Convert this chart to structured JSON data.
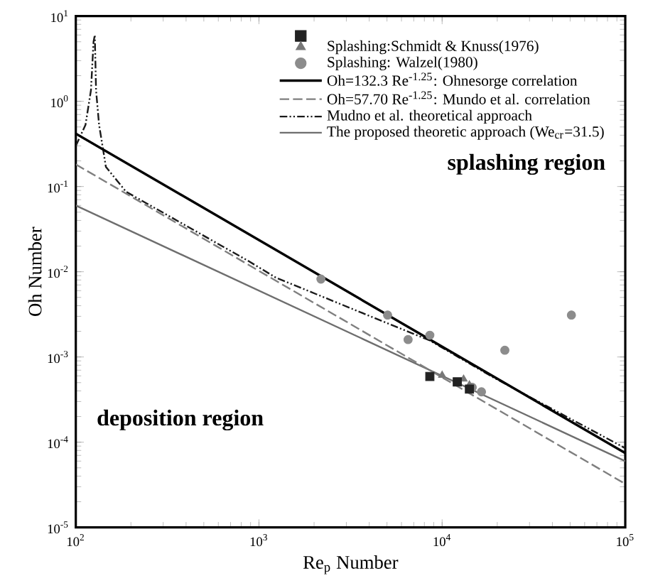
{
  "chart_data": {
    "type": "scatter",
    "xlabel": "Re$_{p}$ Number",
    "ylabel": "Oh Number",
    "log": "xy",
    "legend": "top right",
    "grid": false,
    "xlim": [
      100,
      100000
    ],
    "ylim": [
      1e-05,
      10
    ],
    "xticks": [
      {
        "value": 100,
        "label": "10$^{2}$"
      },
      {
        "value": 1000,
        "label": "10$^{3}$"
      },
      {
        "value": 10000,
        "label": "10$^{4}$"
      },
      {
        "value": 100000,
        "label": "10$^{5}$"
      }
    ],
    "yticks": [
      {
        "value": 1e-05,
        "label": "10$^{-5}$"
      },
      {
        "value": 0.0001,
        "label": "10$^{-4}$"
      },
      {
        "value": 0.001,
        "label": "10$^{-3}$"
      },
      {
        "value": 0.01,
        "label": "10$^{-2}$"
      },
      {
        "value": 0.1,
        "label": "10$^{-1}$"
      },
      {
        "value": 1,
        "label": "10$^{0}$"
      },
      {
        "value": 10,
        "label": "10$^{1}$"
      }
    ],
    "annotations": [
      "splashing region",
      "deposition region"
    ],
    "series": [
      {
        "marker": "square",
        "color": "#222222",
        "x": [
          8570,
          12100,
          14100
        ],
        "values": [
          0.00059,
          0.00051,
          0.00042
        ]
      },
      {
        "marker": "triangle",
        "name": "Splashing:Schmidt & Knuss(1976)",
        "color": "#777777",
        "x": [
          10000,
          13100,
          14100
        ],
        "values": [
          0.00061,
          0.00055,
          0.00047
        ]
      },
      {
        "marker": "circle",
        "name": "Splashing: Walzel(1980)",
        "color": "#8c8c8c",
        "x": [
          2180,
          5040,
          6520,
          8570,
          22000,
          50800,
          14600,
          16400
        ],
        "values": [
          0.0082,
          0.0031,
          0.0016,
          0.0018,
          0.0012,
          0.0031,
          0.00044,
          0.00039
        ]
      },
      {
        "type": "line",
        "marker": "none",
        "line_style": "solid",
        "name": "Oh=132.3 Re$^{-1.25}$: Ohnesorge correlation",
        "color": "#000000",
        "x": [
          100,
          100000
        ],
        "values": [
          0.418,
          7.44e-05
        ]
      },
      {
        "type": "line",
        "marker": "none",
        "line_style": "dashed",
        "name": "Oh=57.70 Re$^{-1.25}$: Mundo et al. correlation",
        "color": "#7f7f7f",
        "x": [
          100,
          100000
        ],
        "values": [
          0.182,
          3.24e-05
        ]
      },
      {
        "type": "line",
        "marker": "none",
        "line_style": "dashdot",
        "name": "Mudno et al. theoretical approach",
        "color": "#1a1a1a",
        "x": [
          100,
          113,
          121,
          125,
          127,
          129,
          134,
          146,
          188,
          879,
          1240,
          8570,
          19200,
          100000
        ],
        "values": [
          0.3,
          0.53,
          1.35,
          5.0,
          6.0,
          1.35,
          0.53,
          0.17,
          0.087,
          0.0133,
          0.0085,
          0.00156,
          0.00057,
          8.5e-05
        ]
      },
      {
        "type": "line",
        "marker": "none",
        "line_style": "solid",
        "name": "The proposed theoretic approach (We$_{cr}$=31.5)",
        "color": "#6e6e6e",
        "x": [
          100,
          100000
        ],
        "values": [
          0.06,
          6e-05
        ]
      }
    ]
  }
}
